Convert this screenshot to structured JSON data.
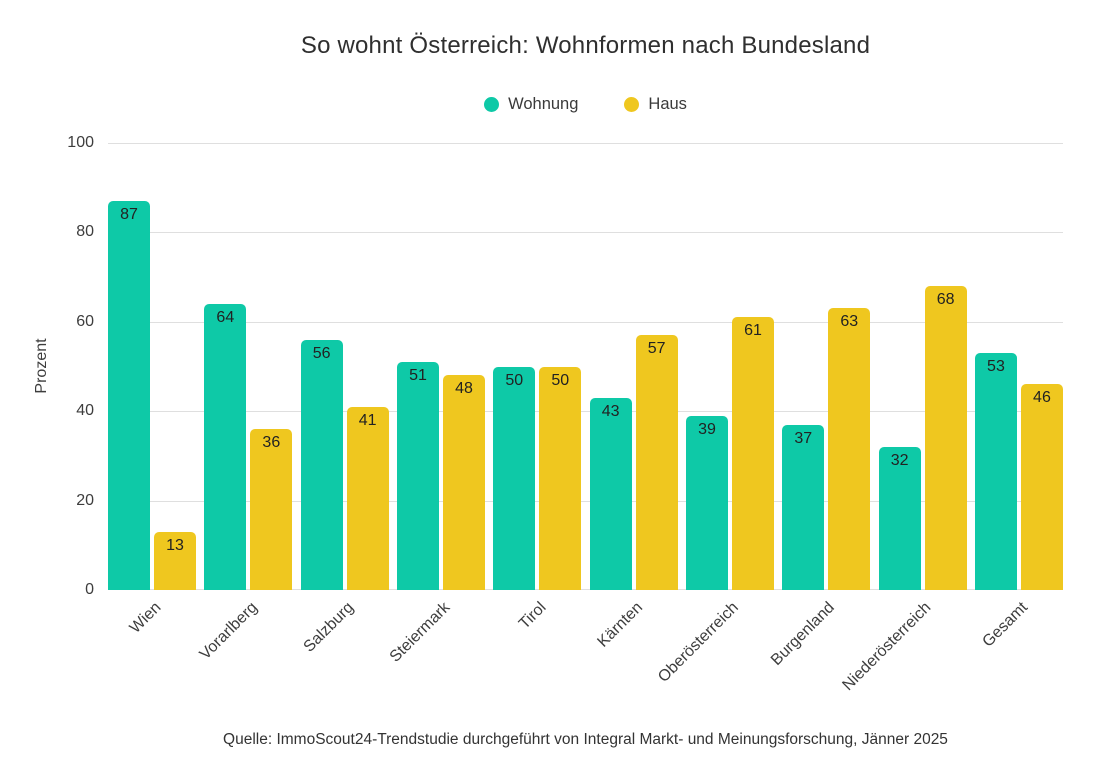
{
  "chart_data": {
    "type": "bar",
    "title": "So wohnt Österreich: Wohnformen nach Bundesland",
    "ylabel": "Prozent",
    "xlabel": "",
    "ylim": [
      0,
      100
    ],
    "yticks": [
      0,
      20,
      40,
      60,
      80,
      100
    ],
    "grid": true,
    "legend_position": "top-center",
    "categories": [
      "Wien",
      "Vorarlberg",
      "Salzburg",
      "Steiermark",
      "Tirol",
      "Kärnten",
      "Oberösterreich",
      "Burgenland",
      "Niederösterreich",
      "Gesamt"
    ],
    "series": [
      {
        "name": "Wohnung",
        "color": "#0ec9a7",
        "values": [
          87,
          64,
          56,
          51,
          50,
          43,
          39,
          37,
          32,
          53
        ]
      },
      {
        "name": "Haus",
        "color": "#efc71f",
        "values": [
          13,
          36,
          41,
          48,
          50,
          57,
          61,
          63,
          68,
          46
        ]
      }
    ],
    "source": "Quelle: ImmoScout24-Trendstudie durchgeführt von Integral Markt- und Meinungsforschung, Jänner 2025"
  },
  "colors": {
    "wohnung": "#0ec9a7",
    "haus": "#efc71f",
    "gridline": "#dfdfdf",
    "text": "#3d3d3d",
    "background": "#ffffff"
  }
}
